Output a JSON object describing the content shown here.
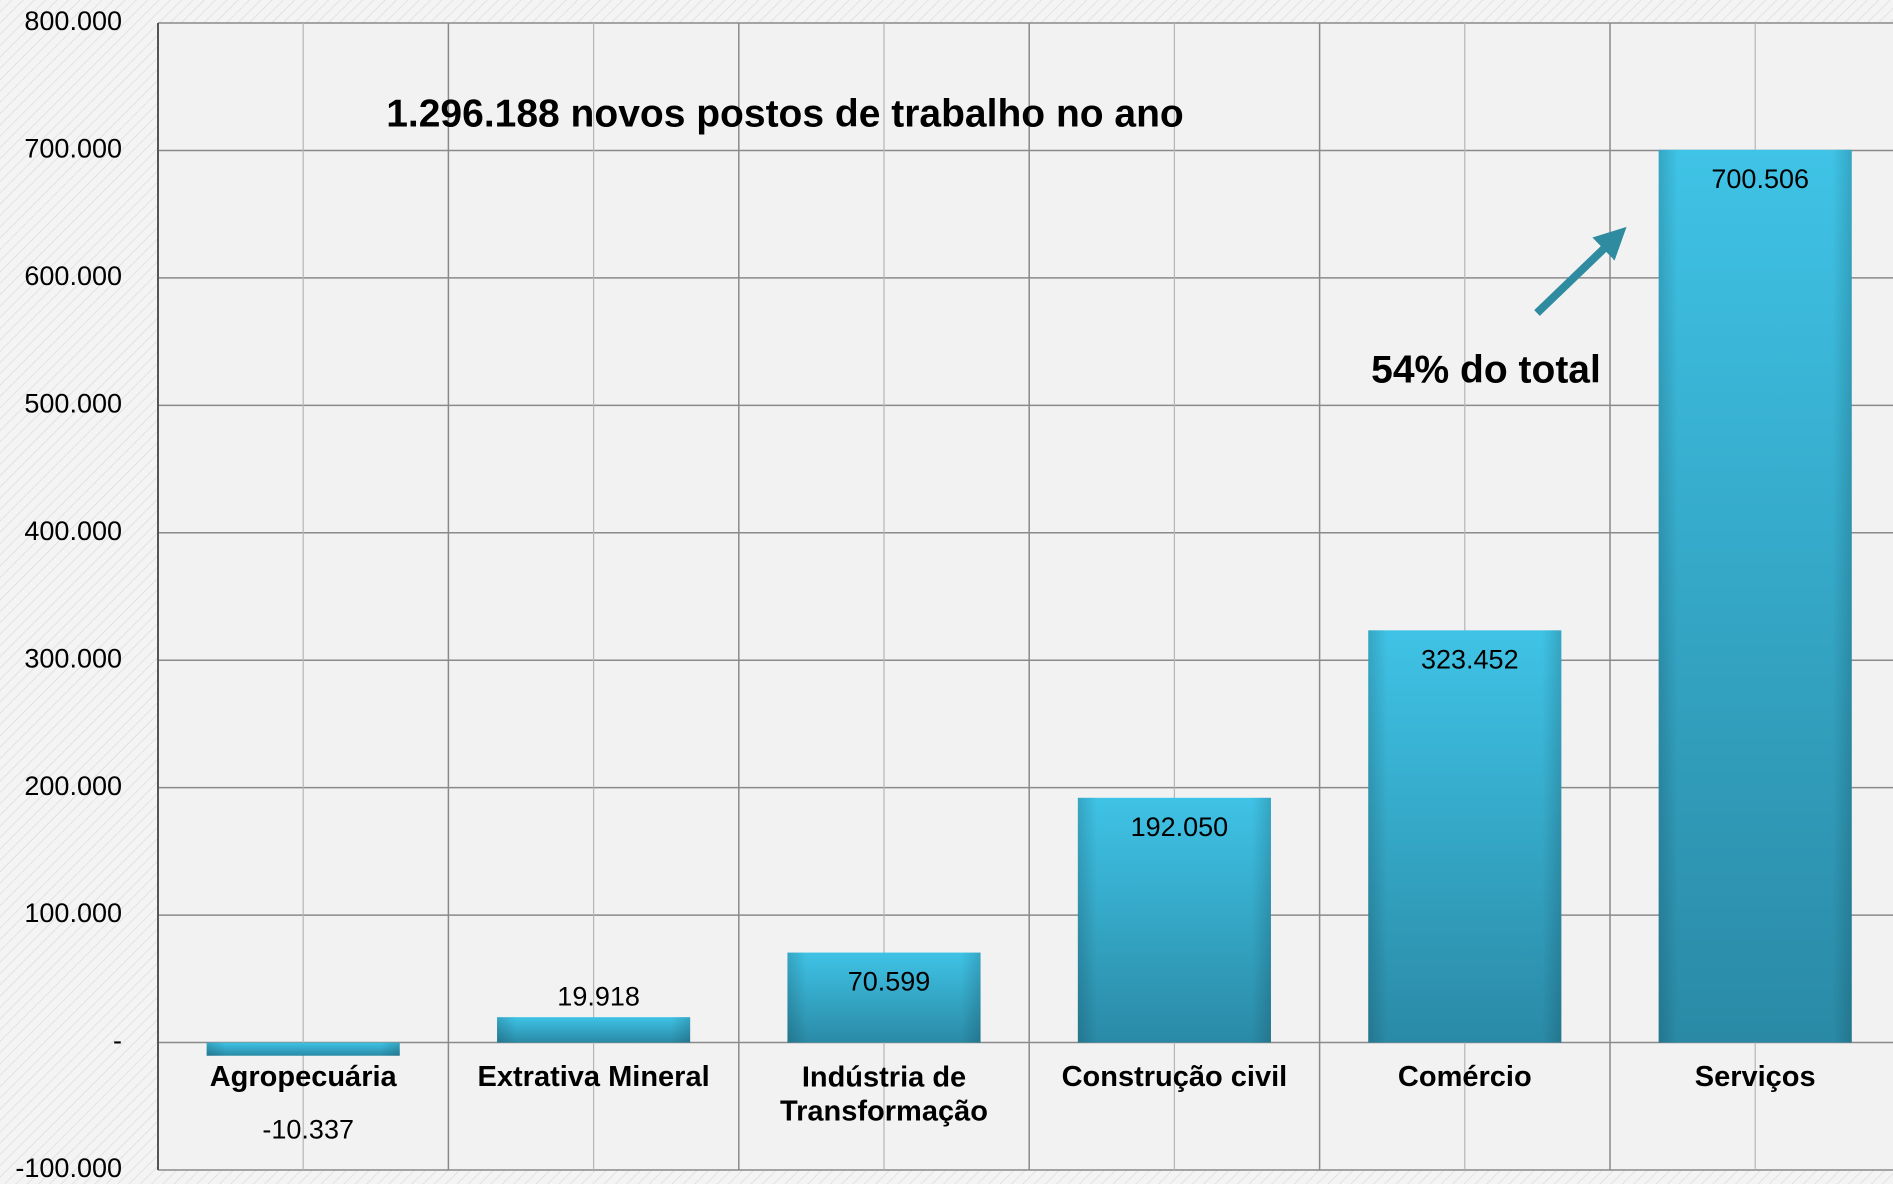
{
  "chart_data": {
    "type": "bar",
    "categories": [
      "Agropecuária",
      "Extrativa Mineral",
      "Indústria de Transformação",
      "Construção civil",
      "Comércio",
      "Serviços"
    ],
    "values": [
      -10337,
      19918,
      70599,
      192050,
      323452,
      700506
    ],
    "value_labels": [
      "-10.337",
      "19.918",
      "70.599",
      "192.050",
      "323.452",
      "700.506"
    ],
    "color": "#35b4d6",
    "ylim": [
      -100000,
      800000
    ],
    "yticks": [
      {
        "value": -100000,
        "label": "-100.000"
      },
      {
        "value": 0,
        "label": "-"
      },
      {
        "value": 100000,
        "label": "100.000"
      },
      {
        "value": 200000,
        "label": "200.000"
      },
      {
        "value": 300000,
        "label": "300.000"
      },
      {
        "value": 400000,
        "label": "400.000"
      },
      {
        "value": 500000,
        "label": "500.000"
      },
      {
        "value": 600000,
        "label": "600.000"
      },
      {
        "value": 700000,
        "label": "700.000"
      },
      {
        "value": 800000,
        "label": "800.000"
      }
    ],
    "grid": true,
    "annotations": [
      "1.296.188 novos postos de trabalho no ano",
      "54% do total"
    ]
  }
}
